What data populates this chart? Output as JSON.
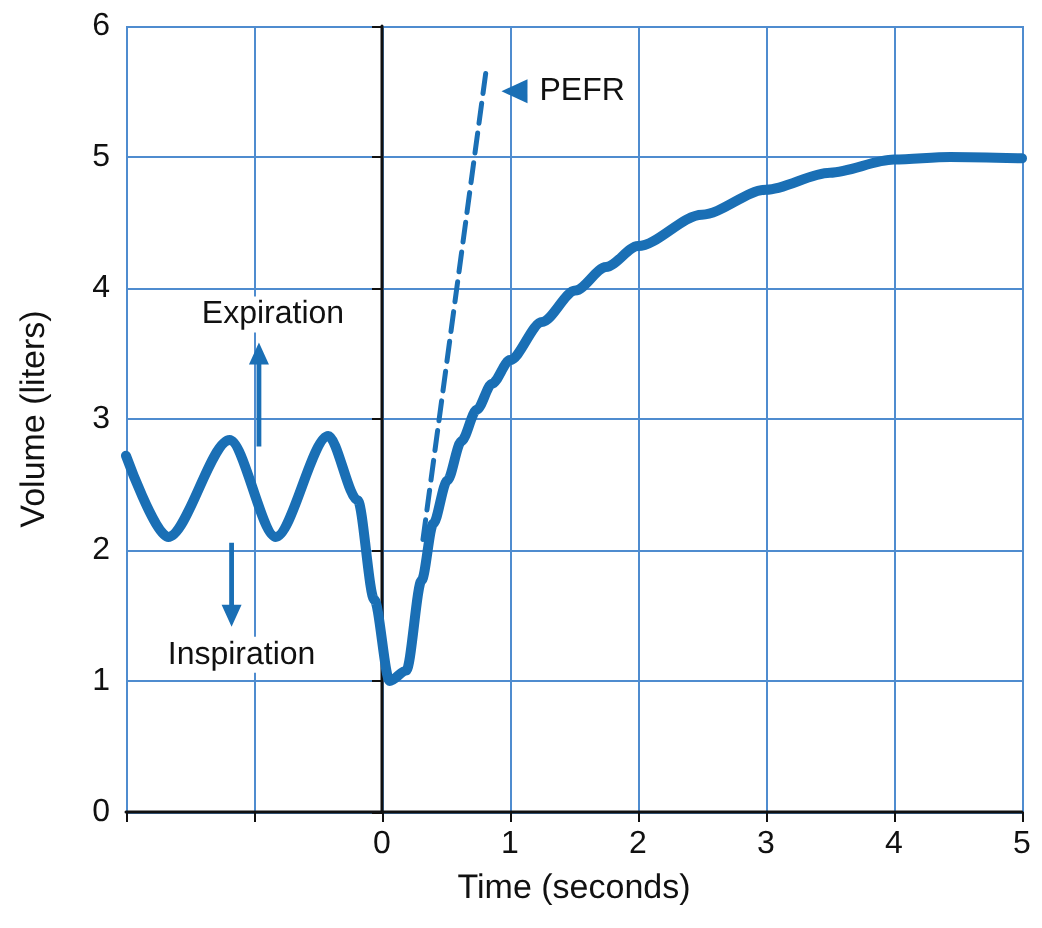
{
  "chart_data": {
    "type": "line",
    "xlabel": "Time (seconds)",
    "ylabel": "Volume (liters)",
    "xlim": [
      -2,
      5
    ],
    "xticks": [
      {
        "value": -2,
        "label": null
      },
      {
        "value": -1,
        "label": null
      },
      0,
      1,
      2,
      3,
      4,
      5
    ],
    "ylim": [
      0,
      6
    ],
    "yticks": [
      0,
      1,
      2,
      3,
      4,
      5,
      6
    ],
    "grid": true,
    "marker": "none",
    "series": [
      {
        "color": "#1a6fb5",
        "line_style": "solid",
        "x": [
          -2.0,
          -1.67,
          -1.19,
          -0.83,
          -0.42,
          -0.19,
          -0.06,
          0.06,
          0.19,
          0.31,
          0.4,
          0.51,
          0.62,
          0.74,
          0.86,
          1.0,
          1.25,
          1.51,
          1.75,
          2.0,
          2.5,
          3.0,
          3.5,
          4.0,
          4.44,
          5.0
        ],
        "values": [
          2.72,
          2.1,
          2.84,
          2.1,
          2.87,
          2.38,
          1.62,
          1.0,
          1.08,
          1.77,
          2.2,
          2.53,
          2.83,
          3.07,
          3.27,
          3.45,
          3.74,
          3.98,
          4.16,
          4.32,
          4.56,
          4.75,
          4.88,
          4.98,
          5.0,
          4.99
        ]
      },
      {
        "color": "#1a6fb5",
        "line_style": "dashed",
        "x": [
          0.32,
          0.82
        ],
        "values": [
          2.08,
          5.71
        ]
      }
    ],
    "annotations": [
      "PEFR",
      "Expiration",
      "Inspiration"
    ]
  }
}
